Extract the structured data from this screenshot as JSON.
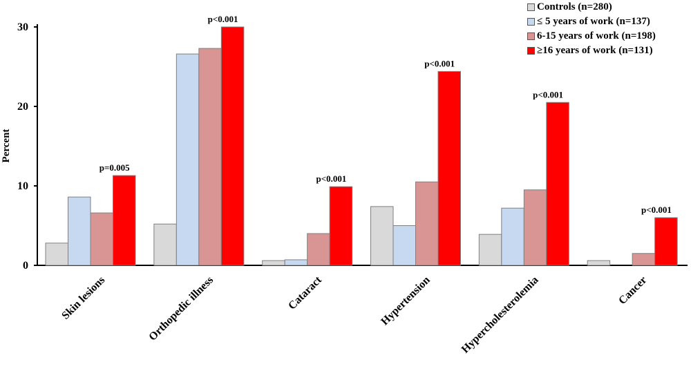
{
  "chart_data": {
    "type": "bar",
    "title": "",
    "xlabel": "",
    "ylabel": "Percent",
    "ylim": [
      0,
      30
    ],
    "yticks": [
      0,
      10,
      20,
      30
    ],
    "grid": false,
    "legend_position": "top-right",
    "categories": [
      "Skin lesions",
      "Orthopedic illness",
      "Cataract",
      "Hypertension",
      "Hypercholesterolemia",
      "Cancer"
    ],
    "series": [
      {
        "name": "Controls (n=280)",
        "color": "#d9d9d9",
        "values": [
          2.8,
          5.2,
          0.6,
          7.4,
          3.9,
          0.6
        ]
      },
      {
        "name": "≤ 5 years of work (n=137)",
        "color": "#c6d9f1",
        "values": [
          8.6,
          26.6,
          0.7,
          5.0,
          7.2,
          0.0
        ]
      },
      {
        "name": "6-15 years of work (n=198)",
        "color": "#d99594",
        "values": [
          6.6,
          27.3,
          4.0,
          10.5,
          9.5,
          1.5
        ]
      },
      {
        "name": "≥16 years of work (n=131)",
        "color": "#ff0000",
        "values": [
          11.3,
          30.0,
          9.9,
          24.4,
          20.5,
          6.0
        ]
      }
    ],
    "annotations": [
      "p=0.005",
      "p<0.001",
      "p<0.001",
      "p<0.001",
      "p<0.001",
      "p<0.001"
    ]
  }
}
